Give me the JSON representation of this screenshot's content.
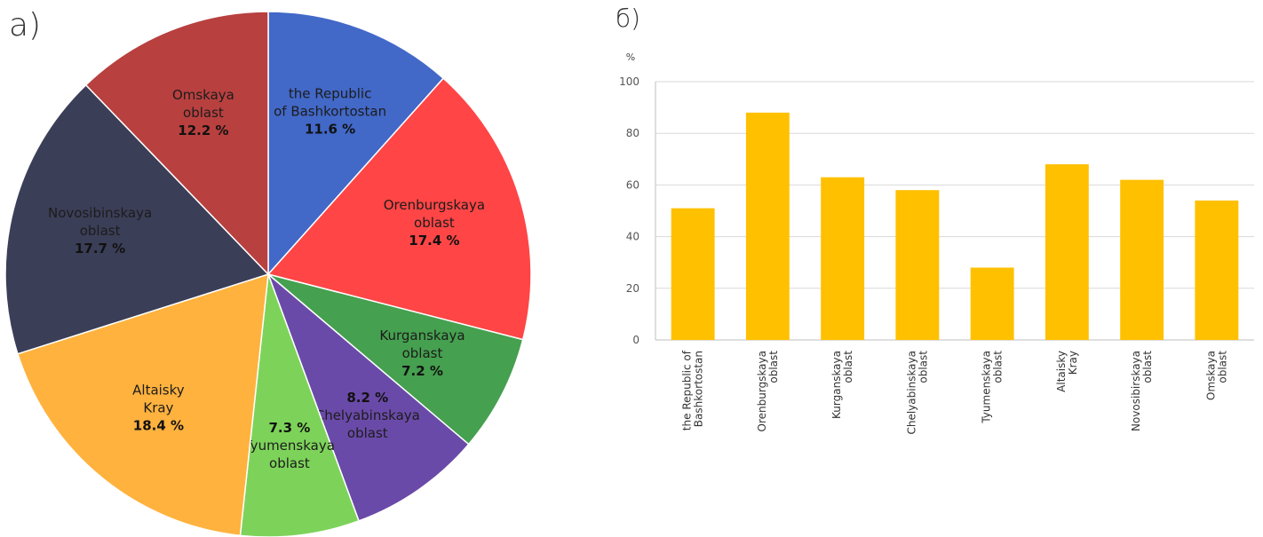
{
  "panels": {
    "pie_letter": "a)",
    "bar_letter": "б)"
  },
  "chart_data": [
    {
      "type": "pie",
      "slices": [
        {
          "label_lines": [
            "the Republic",
            "of Bashkortostan"
          ],
          "value": 11.6,
          "pct_label": "11.6  %",
          "color": "#4268C8"
        },
        {
          "label_lines": [
            "Orenburgskaya",
            "oblast"
          ],
          "value": 17.4,
          "pct_label": "17.4  %",
          "color": "#FF4545"
        },
        {
          "label_lines": [
            "Kurganskaya",
            "oblast"
          ],
          "value": 7.2,
          "pct_label": "7.2  %",
          "color": "#45A04F"
        },
        {
          "label_lines": [
            "Chelyabinskaya",
            "oblast"
          ],
          "value": 8.2,
          "pct_label": "8.2  %",
          "color": "#6A4AA8"
        },
        {
          "label_lines": [
            "Tyumenskaya",
            "oblast"
          ],
          "value": 7.3,
          "pct_label": "7.3  %",
          "color": "#7DD35A"
        },
        {
          "label_lines": [
            "Altaisky",
            "Kray"
          ],
          "value": 18.4,
          "pct_label": "18.4  %",
          "color": "#FFB23E"
        },
        {
          "label_lines": [
            "Novosibinskaya",
            "oblast"
          ],
          "value": 17.7,
          "pct_label": "17.7  %",
          "color": "#3B3E57"
        },
        {
          "label_lines": [
            "Omskaya",
            "oblast"
          ],
          "value": 12.2,
          "pct_label": "12.2  %",
          "color": "#B8403F"
        }
      ]
    },
    {
      "type": "bar",
      "ylabel": "%",
      "ylim": [
        0,
        100
      ],
      "yticks": [
        0,
        20,
        40,
        60,
        80,
        100
      ],
      "grid": true,
      "bar_color": "#FFC000",
      "categories": [
        [
          "the Republic of",
          "Bashkortostan"
        ],
        [
          "Orenburgskaya",
          "oblast"
        ],
        [
          "Kurganskaya",
          "oblast"
        ],
        [
          "Chelyabinskaya",
          "oblast"
        ],
        [
          "Tyumenskaya",
          "oblast"
        ],
        [
          "Altaisky",
          "Kray"
        ],
        [
          "Novosibirskaya",
          "oblast"
        ],
        [
          "Omskaya",
          "oblast"
        ]
      ],
      "values": [
        51,
        88,
        63,
        58,
        28,
        68,
        62,
        54
      ]
    }
  ]
}
